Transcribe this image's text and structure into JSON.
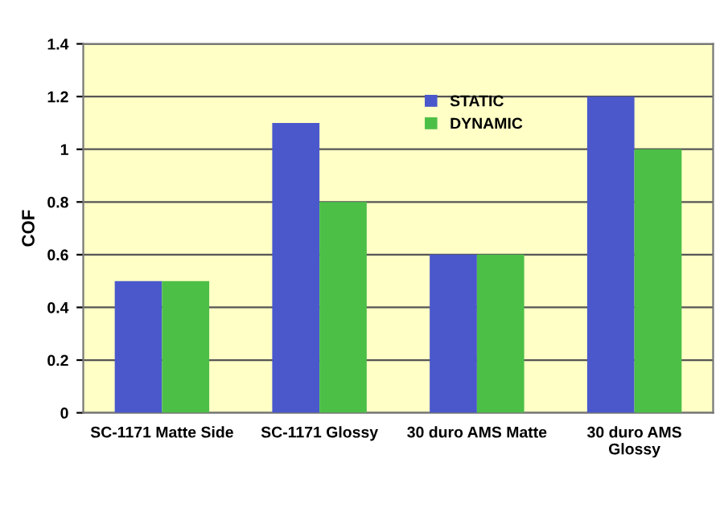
{
  "chart_data": {
    "type": "bar",
    "ylabel": "COF",
    "categories": [
      "SC-1171 Matte Side",
      "SC-1171 Glossy",
      "30 duro AMS Matte",
      "30 duro AMS\nGlossy"
    ],
    "series": [
      {
        "name": "STATIC",
        "color": "#4a58cc",
        "values": [
          0.5,
          1.1,
          0.6,
          1.2
        ]
      },
      {
        "name": "DYNAMIC",
        "color": "#4cbf47",
        "values": [
          0.5,
          0.8,
          0.6,
          1.0
        ]
      }
    ],
    "ylim": [
      0,
      1.4
    ],
    "yticks": [
      0,
      0.2,
      0.4,
      0.6,
      0.8,
      1,
      1.2,
      1.4
    ],
    "grid": "y",
    "legend": "top"
  }
}
